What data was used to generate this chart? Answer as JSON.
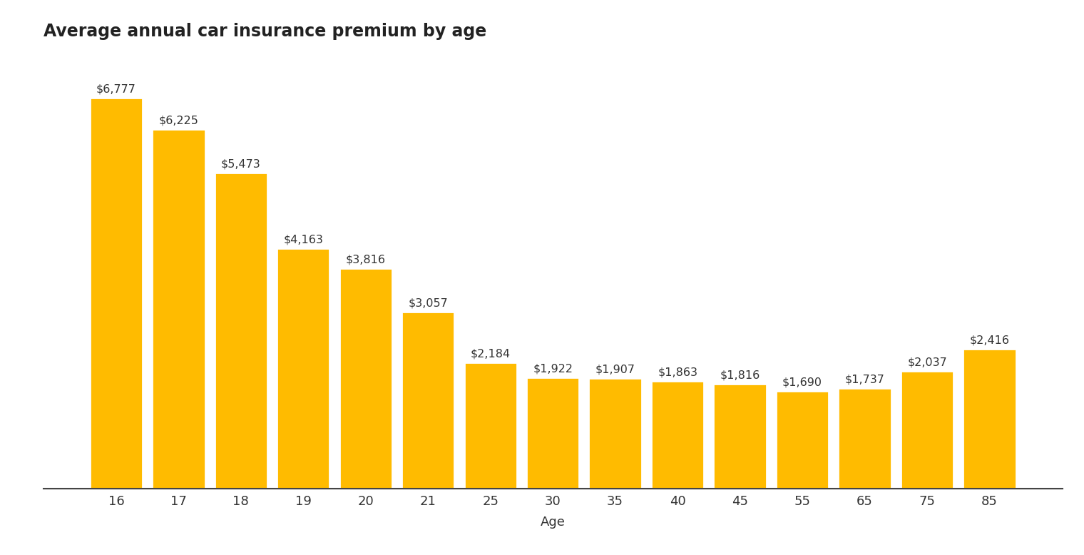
{
  "title": "Average annual car insurance premium by age",
  "xlabel": "Age",
  "categories": [
    "16",
    "17",
    "18",
    "19",
    "20",
    "21",
    "25",
    "30",
    "35",
    "40",
    "45",
    "55",
    "65",
    "75",
    "85"
  ],
  "values": [
    6777,
    6225,
    5473,
    4163,
    3816,
    3057,
    2184,
    1922,
    1907,
    1863,
    1816,
    1690,
    1737,
    2037,
    2416
  ],
  "labels": [
    "$6,777",
    "$6,225",
    "$5,473",
    "$4,163",
    "$3,816",
    "$3,057",
    "$2,184",
    "$1,922",
    "$1,907",
    "$1,863",
    "$1,816",
    "$1,690",
    "$1,737",
    "$2,037",
    "$2,416"
  ],
  "bar_color": "#FFBB00",
  "background_color": "#ffffff",
  "title_color": "#222222",
  "label_color": "#333333",
  "title_fontsize": 17,
  "label_fontsize": 11.5,
  "tick_fontsize": 13,
  "xlabel_fontsize": 13,
  "ylim": [
    0,
    7600
  ]
}
